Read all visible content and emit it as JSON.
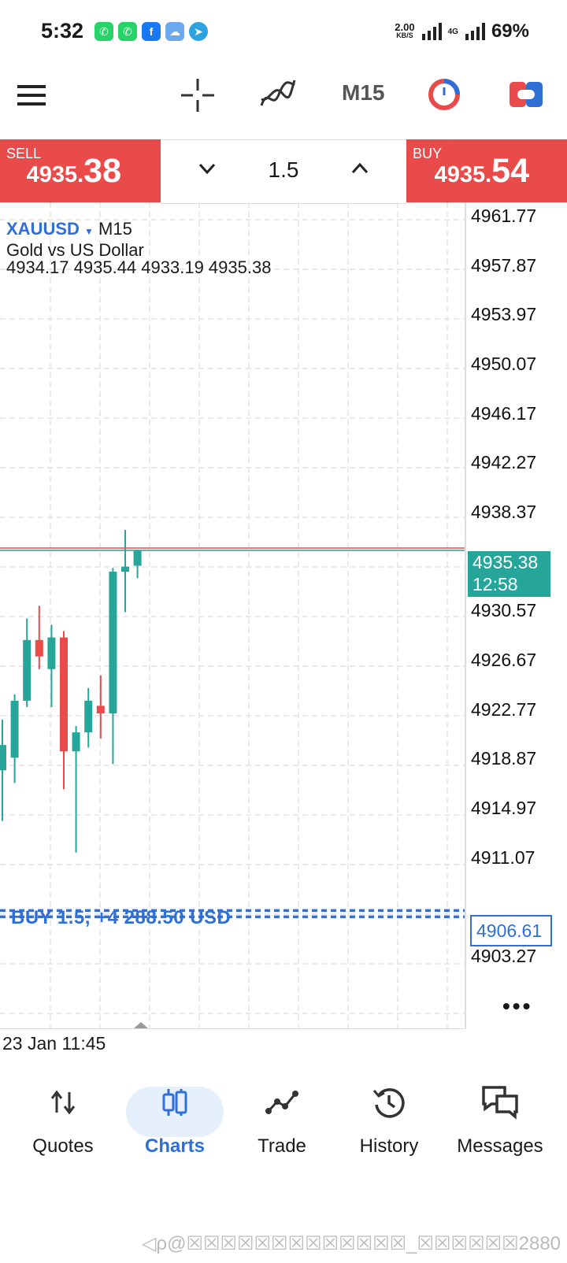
{
  "status_bar": {
    "time": "5:32",
    "net_speed": "2.00",
    "net_unit": "KB/S",
    "network": "4G",
    "battery": "69%",
    "apps": [
      "whatsapp-icon",
      "whatsapp-icon",
      "facebook-icon",
      "weather-icon",
      "telegram-icon"
    ]
  },
  "toolbar": {
    "timeframe": "M15"
  },
  "trade_bar": {
    "sell_label": "SELL",
    "sell_price_main": "4935.",
    "sell_price_big": "38",
    "lot": "1.5",
    "buy_label": "BUY",
    "buy_price_main": "4935.",
    "buy_price_big": "54"
  },
  "chart": {
    "symbol": "XAUUSD",
    "timeframe": "M15",
    "description": "Gold vs US Dollar",
    "ohlc": "4934.17 4935.44 4933.19 4935.38",
    "price_labels": [
      "4961.77",
      "4957.87",
      "4953.97",
      "4950.07",
      "4946.17",
      "4942.27",
      "4938.37",
      "4930.57",
      "4926.67",
      "4922.77",
      "4918.87",
      "4914.97",
      "4911.07",
      "4903.27"
    ],
    "current_price": "4935.38",
    "countdown": "12:58",
    "order_price": "4906.61",
    "order_label": "BUY 1.5,  +4 288.50 USD",
    "date_label": "23 Jan 11:45",
    "colors": {
      "up": "#26a69a",
      "down": "#e94b4b",
      "order": "#2f6fd6"
    }
  },
  "chart_data": {
    "type": "candlestick",
    "symbol": "XAUUSD",
    "timeframe": "M15",
    "ylim": [
      4901.0,
      4963.5
    ],
    "candles": [
      {
        "o": 4918.0,
        "h": 4922.0,
        "l": 4914.0,
        "c": 4920.0,
        "dir": "up"
      },
      {
        "o": 4919.0,
        "h": 4924.0,
        "l": 4917.0,
        "c": 4923.5,
        "dir": "up"
      },
      {
        "o": 4923.5,
        "h": 4930.0,
        "l": 4923.0,
        "c": 4928.3,
        "dir": "up"
      },
      {
        "o": 4928.3,
        "h": 4931.0,
        "l": 4926.0,
        "c": 4927.0,
        "dir": "down"
      },
      {
        "o": 4926.0,
        "h": 4929.5,
        "l": 4923.0,
        "c": 4928.5,
        "dir": "up"
      },
      {
        "o": 4928.5,
        "h": 4929.0,
        "l": 4916.5,
        "c": 4919.5,
        "dir": "down"
      },
      {
        "o": 4919.5,
        "h": 4921.5,
        "l": 4911.5,
        "c": 4921.0,
        "dir": "up"
      },
      {
        "o": 4921.0,
        "h": 4924.5,
        "l": 4919.8,
        "c": 4923.5,
        "dir": "up"
      },
      {
        "o": 4923.1,
        "h": 4925.5,
        "l": 4920.5,
        "c": 4922.5,
        "dir": "down"
      },
      {
        "o": 4922.5,
        "h": 4934.0,
        "l": 4918.5,
        "c": 4933.7,
        "dir": "up"
      },
      {
        "o": 4933.7,
        "h": 4937.0,
        "l": 4930.5,
        "c": 4934.1,
        "dir": "up"
      },
      {
        "o": 4934.17,
        "h": 4935.44,
        "l": 4933.19,
        "c": 4935.38,
        "dir": "up"
      }
    ],
    "current_price": 4935.38,
    "order_line": 4906.61
  },
  "bottom_nav": {
    "items": [
      {
        "label": "Quotes",
        "icon": "quotes-icon"
      },
      {
        "label": "Charts",
        "icon": "charts-icon"
      },
      {
        "label": "Trade",
        "icon": "trade-icon"
      },
      {
        "label": "History",
        "icon": "history-icon"
      },
      {
        "label": "Messages",
        "icon": "messages-icon"
      }
    ],
    "active": "Charts"
  },
  "watermark": "◁ρ@☒☒☒☒☒☒☒☒☒☒☒☒☒_☒☒☒☒☒☒2880"
}
